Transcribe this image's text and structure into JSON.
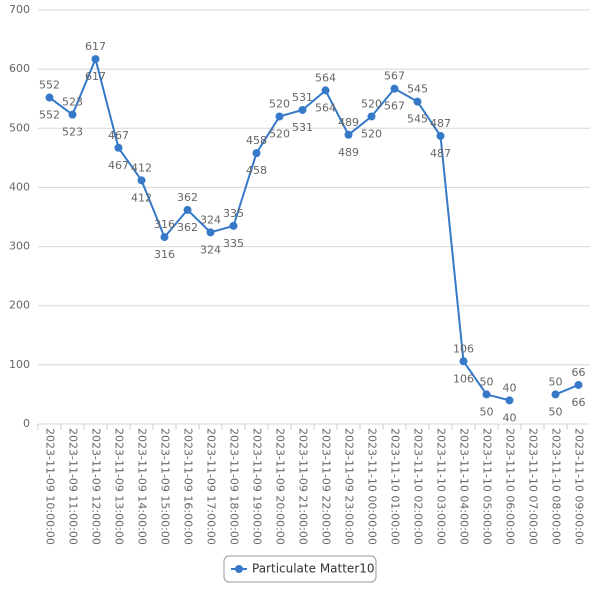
{
  "chart_data": {
    "type": "line",
    "categories": [
      "2023-11-09 10:00:00",
      "2023-11-09 11:00:00",
      "2023-11-09 12:00:00",
      "2023-11-09 13:00:00",
      "2023-11-09 14:00:00",
      "2023-11-09 15:00:00",
      "2023-11-09 16:00:00",
      "2023-11-09 17:00:00",
      "2023-11-09 18:00:00",
      "2023-11-09 19:00:00",
      "2023-11-09 20:00:00",
      "2023-11-09 21:00:00",
      "2023-11-09 22:00:00",
      "2023-11-09 23:00:00",
      "2023-11-10 00:00:00",
      "2023-11-10 01:00:00",
      "2023-11-10 02:00:00",
      "2023-11-10 03:00:00",
      "2023-11-10 04:00:00",
      "2023-11-10 05:00:00",
      "2023-11-10 06:00:00",
      "2023-11-10 07:00:00",
      "2023-11-10 08:00:00",
      "2023-11-10 09:00:00"
    ],
    "series": [
      {
        "name": "Particulate Matter10",
        "color": "#3579c8",
        "values": [
          552,
          523,
          617,
          467,
          412,
          316,
          362,
          324,
          335,
          458,
          520,
          531,
          564,
          489,
          520,
          567,
          545,
          487,
          106,
          50,
          40,
          null,
          50,
          66
        ]
      }
    ],
    "ylim": [
      0,
      700
    ],
    "yticks": [
      0,
      100,
      200,
      300,
      400,
      500,
      600,
      700
    ],
    "grid": true,
    "legend": "bottom"
  }
}
